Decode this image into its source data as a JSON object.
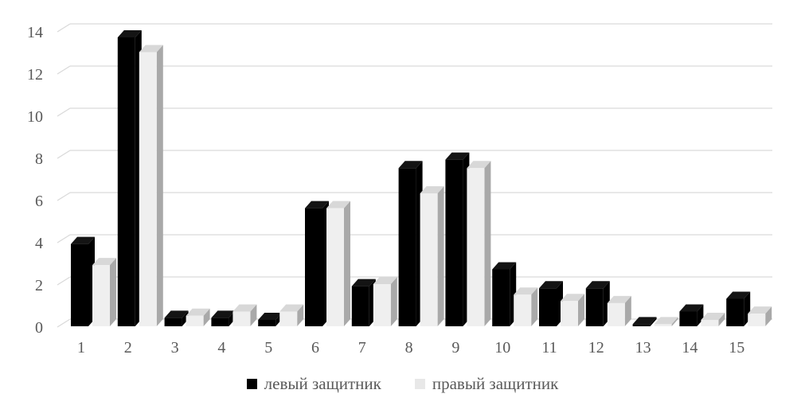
{
  "chart_data": {
    "type": "bar",
    "style": "3d-clustered-column",
    "title": "",
    "xlabel": "",
    "ylabel": "",
    "categories": [
      "1",
      "2",
      "3",
      "4",
      "5",
      "6",
      "7",
      "8",
      "9",
      "10",
      "11",
      "12",
      "13",
      "14",
      "15"
    ],
    "series": [
      {
        "name": "левый защитник",
        "values": [
          3.9,
          13.7,
          0.4,
          0.4,
          0.3,
          5.6,
          1.9,
          7.5,
          7.9,
          2.7,
          1.8,
          1.8,
          0.1,
          0.7,
          1.3
        ],
        "face_color": "#000000",
        "top_color": "#141414",
        "side_color": "#000000"
      },
      {
        "name": "правый защитник",
        "values": [
          2.9,
          13.0,
          0.5,
          0.7,
          0.7,
          5.6,
          2.0,
          6.3,
          7.5,
          1.5,
          1.2,
          1.1,
          0.1,
          0.3,
          0.6
        ],
        "face_color": "#efefef",
        "top_color": "#d8d8d8",
        "side_color": "#a9a9a9"
      }
    ],
    "ylim": [
      0,
      14
    ],
    "y_tick_step": 2,
    "y_ticks": [
      "0",
      "2",
      "4",
      "6",
      "8",
      "10",
      "12",
      "14"
    ],
    "grid": true,
    "gridline_color": "#d9d9d9",
    "axis_text_color": "#595959",
    "legend_position": "bottom"
  }
}
